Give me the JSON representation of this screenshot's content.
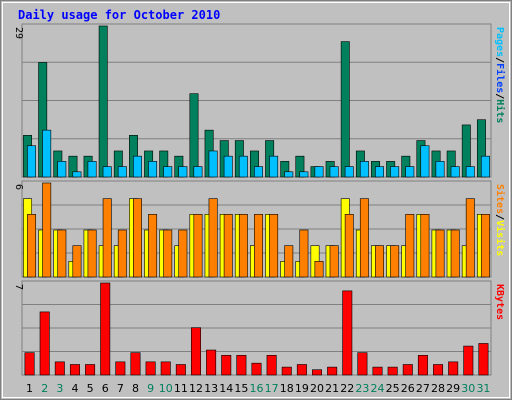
{
  "chart_data": {
    "type": "bar",
    "title": "Daily usage for October 2010",
    "categories": [
      "1",
      "2",
      "3",
      "4",
      "5",
      "6",
      "7",
      "8",
      "9",
      "10",
      "11",
      "12",
      "13",
      "14",
      "15",
      "16",
      "17",
      "18",
      "19",
      "20",
      "21",
      "22",
      "23",
      "24",
      "25",
      "26",
      "27",
      "28",
      "29",
      "30",
      "31"
    ],
    "weekend_days": [
      "2",
      "3",
      "9",
      "10",
      "16",
      "17",
      "23",
      "24",
      "30",
      "31"
    ],
    "panels": [
      {
        "name": "hits-files-pages",
        "y_max_label": "29",
        "ylim": [
          0,
          29
        ],
        "series": [
          {
            "name": "Hits",
            "color": "#00805c",
            "values": [
              8,
              22,
              5,
              4,
              4,
              29,
              5,
              8,
              5,
              5,
              4,
              16,
              9,
              7,
              7,
              5,
              7,
              3,
              4,
              2,
              3,
              26,
              5,
              3,
              3,
              4,
              7,
              5,
              5,
              10,
              11
            ]
          },
          {
            "name": "Files",
            "color": "#0040ff",
            "values": [
              0,
              0,
              0,
              0,
              0,
              0,
              0,
              0,
              0,
              0,
              0,
              0,
              0,
              0,
              0,
              0,
              0,
              0,
              0,
              0,
              0,
              0,
              0,
              0,
              0,
              0,
              0,
              0,
              0,
              0,
              0
            ]
          },
          {
            "name": "Pages",
            "color": "#00c0ff",
            "values": [
              6,
              9,
              3,
              1,
              3,
              2,
              2,
              4,
              3,
              2,
              2,
              2,
              5,
              4,
              4,
              2,
              4,
              1,
              1,
              2,
              2,
              2,
              3,
              2,
              2,
              2,
              6,
              3,
              2,
              2,
              4
            ]
          }
        ],
        "legend": [
          "Pages",
          "Files",
          "Hits"
        ]
      },
      {
        "name": "sites-visits",
        "y_max_label": "6",
        "ylim": [
          0,
          6
        ],
        "series": [
          {
            "name": "Visits",
            "color": "#ffff00",
            "values": [
              5,
              3,
              3,
              1,
              3,
              2,
              2,
              5,
              3,
              3,
              2,
              4,
              4,
              4,
              4,
              2,
              4,
              1,
              1,
              2,
              2,
              5,
              3,
              2,
              2,
              2,
              4,
              3,
              3,
              2,
              4
            ]
          },
          {
            "name": "Sites",
            "color": "#ff8000",
            "values": [
              4,
              6,
              3,
              2,
              3,
              5,
              3,
              5,
              4,
              3,
              3,
              4,
              5,
              4,
              4,
              4,
              4,
              2,
              3,
              1,
              2,
              4,
              5,
              2,
              2,
              4,
              4,
              3,
              3,
              5,
              4
            ]
          }
        ],
        "legend": [
          "Sites",
          "Visits"
        ]
      },
      {
        "name": "kbytes",
        "y_max_label": "7",
        "ylim": [
          0,
          7
        ],
        "series": [
          {
            "name": "KBytes",
            "color": "#ff0000",
            "values": [
              1.7,
              4.8,
              1.0,
              0.8,
              0.8,
              7.0,
              1.0,
              1.7,
              1.0,
              1.0,
              0.8,
              3.6,
              1.9,
              1.5,
              1.5,
              0.9,
              1.5,
              0.6,
              0.8,
              0.4,
              0.6,
              6.4,
              1.7,
              0.6,
              0.6,
              0.8,
              1.5,
              0.8,
              1.0,
              2.2,
              2.4
            ]
          }
        ],
        "legend": [
          "KBytes"
        ]
      }
    ],
    "legend_separator": "/",
    "colors": {
      "background": "#c0c0c0",
      "frame_dark": "#808080",
      "frame_light": "#ffffff",
      "title": "#0000ff",
      "grid": "#808080",
      "weekday_label": "#000000",
      "weekend_label": "#00805c",
      "bar_outline": "#000000"
    },
    "grid": true
  }
}
